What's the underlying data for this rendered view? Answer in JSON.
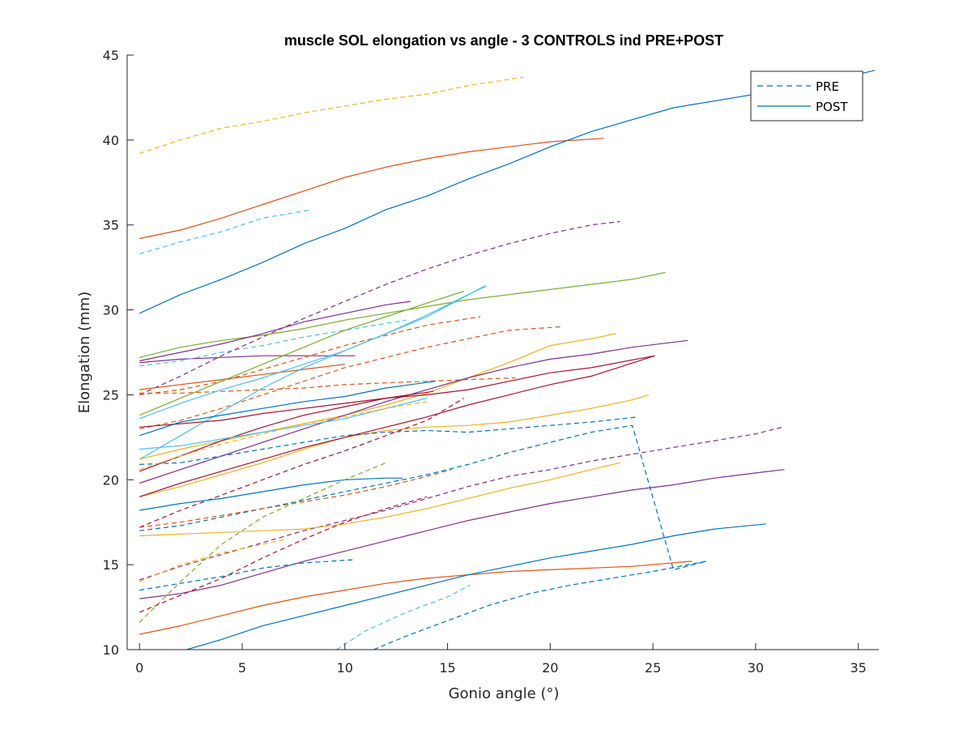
{
  "chart_data": {
    "type": "line",
    "title": "muscle SOL elongation vs angle - 3 CONTROLS ind PRE+POST",
    "xlabel": "Gonio angle (°)",
    "ylabel": "Elongation (mm)",
    "xlim": [
      -0.6,
      36
    ],
    "ylim": [
      10,
      45
    ],
    "xticks": [
      0,
      5,
      10,
      15,
      20,
      25,
      30,
      35
    ],
    "yticks": [
      10,
      15,
      20,
      25,
      30,
      35,
      40,
      45
    ],
    "legend": {
      "position": "top-right",
      "entries": [
        {
          "label": "PRE",
          "style": "dashed",
          "color": "#0072BD"
        },
        {
          "label": "POST",
          "style": "solid",
          "color": "#0072BD"
        }
      ]
    },
    "series": [
      {
        "color": "#EDB120",
        "style": "dashed",
        "x": [
          0,
          2,
          4,
          6,
          8,
          10,
          12,
          14,
          16,
          18.7
        ],
        "y": [
          39.2,
          40.0,
          40.7,
          41.1,
          41.6,
          42.0,
          42.4,
          42.7,
          43.2,
          43.7
        ]
      },
      {
        "color": "#D95319",
        "style": "solid",
        "x": [
          0,
          2,
          4,
          6,
          8,
          10,
          12,
          14,
          16,
          18,
          20,
          22.6
        ],
        "y": [
          34.2,
          34.7,
          35.4,
          36.2,
          37.0,
          37.8,
          38.4,
          38.9,
          39.3,
          39.6,
          39.9,
          40.1
        ]
      },
      {
        "color": "#0072BD",
        "style": "solid",
        "x": [
          0,
          2,
          4,
          6,
          8,
          10,
          12,
          14,
          16,
          18,
          20,
          22,
          24,
          26,
          28,
          30,
          32,
          34,
          35.8
        ],
        "y": [
          29.8,
          30.9,
          31.8,
          32.8,
          33.9,
          34.8,
          35.9,
          36.7,
          37.7,
          38.6,
          39.6,
          40.5,
          41.2,
          41.9,
          42.3,
          42.7,
          43.2,
          43.6,
          44.1
        ]
      },
      {
        "color": "#4DBEEE",
        "style": "dashed",
        "x": [
          0,
          2,
          4,
          6,
          8.4
        ],
        "y": [
          33.3,
          34.0,
          34.6,
          35.4,
          35.9
        ]
      },
      {
        "color": "#7E2F8E",
        "style": "dashed",
        "x": [
          0,
          2,
          4,
          6,
          8,
          10,
          12,
          14,
          16,
          18,
          20,
          22,
          23.4
        ],
        "y": [
          25.0,
          26.1,
          27.3,
          28.4,
          29.5,
          30.5,
          31.5,
          32.4,
          33.2,
          33.9,
          34.5,
          35.0,
          35.2
        ]
      },
      {
        "color": "#77AC30",
        "style": "solid",
        "x": [
          0,
          2,
          4,
          6,
          8,
          10,
          12,
          14,
          16,
          18,
          20,
          22,
          24,
          25.6
        ],
        "y": [
          27.2,
          27.8,
          28.2,
          28.5,
          28.9,
          29.4,
          29.8,
          30.2,
          30.6,
          30.9,
          31.2,
          31.5,
          31.8,
          32.2
        ]
      },
      {
        "color": "#7E2F8E",
        "style": "solid",
        "x": [
          0,
          2,
          4,
          6,
          8,
          10,
          12,
          13.2
        ],
        "y": [
          27.0,
          27.5,
          28.0,
          28.6,
          29.3,
          29.8,
          30.3,
          30.5
        ]
      },
      {
        "color": "#7E2F8E",
        "style": "solid",
        "x": [
          0,
          2,
          4,
          6,
          8,
          10.5
        ],
        "y": [
          26.9,
          27.1,
          27.2,
          27.3,
          27.3,
          27.3
        ]
      },
      {
        "color": "#4DBEEE",
        "style": "dashed",
        "x": [
          0,
          2,
          4,
          6,
          8,
          10,
          12,
          13
        ],
        "y": [
          26.7,
          27.0,
          27.5,
          27.9,
          28.4,
          28.8,
          29.2,
          29.4
        ]
      },
      {
        "color": "#D95319",
        "style": "dashed",
        "x": [
          0,
          2,
          4,
          6,
          8,
          10,
          12,
          14,
          16.6
        ],
        "y": [
          25.0,
          25.3,
          25.8,
          26.5,
          27.2,
          27.9,
          28.5,
          29.1,
          29.6
        ]
      },
      {
        "color": "#D95319",
        "style": "dashed",
        "x": [
          0,
          2,
          4,
          6,
          8,
          10,
          12,
          14,
          16,
          18,
          20.5
        ],
        "y": [
          23.0,
          23.5,
          24.2,
          25.0,
          25.8,
          26.6,
          27.2,
          27.8,
          28.3,
          28.8,
          29.0
        ]
      },
      {
        "color": "#D95319",
        "style": "solid",
        "x": [
          0,
          2,
          4,
          6,
          8,
          10
        ],
        "y": [
          25.3,
          25.6,
          25.9,
          26.2,
          26.5,
          26.8
        ]
      },
      {
        "color": "#D95319",
        "style": "dashed",
        "x": [
          0,
          2,
          4,
          6,
          8,
          10,
          12,
          14,
          16,
          18.3
        ],
        "y": [
          25.1,
          25.1,
          25.2,
          25.3,
          25.4,
          25.6,
          25.7,
          25.8,
          25.9,
          26.0
        ]
      },
      {
        "color": "#77AC30",
        "style": "solid",
        "x": [
          0,
          2,
          4,
          6,
          8,
          10,
          12,
          14,
          15.8
        ],
        "y": [
          23.8,
          24.8,
          25.8,
          26.8,
          27.8,
          28.8,
          29.6,
          30.4,
          31.1
        ]
      },
      {
        "color": "#4DBEEE",
        "style": "solid",
        "x": [
          0,
          2,
          4,
          6,
          8,
          10,
          12,
          14,
          16,
          16.9
        ],
        "y": [
          23.6,
          24.5,
          25.3,
          26.0,
          26.8,
          27.6,
          28.6,
          29.7,
          30.9,
          31.4
        ]
      },
      {
        "color": "#4DBEEE",
        "style": "solid",
        "x": [
          0,
          2,
          4,
          6,
          8,
          10,
          12,
          14,
          16.8
        ],
        "y": [
          21.2,
          22.6,
          24.0,
          25.4,
          26.6,
          27.6,
          28.6,
          29.6,
          31.4
        ]
      },
      {
        "color": "#EDB120",
        "style": "solid",
        "x": [
          0,
          2,
          4,
          6,
          8,
          10,
          12,
          14,
          16,
          18,
          20,
          22,
          23.2
        ],
        "y": [
          21.2,
          21.8,
          22.3,
          22.8,
          23.3,
          23.8,
          24.4,
          25.1,
          26.0,
          26.9,
          27.9,
          28.3,
          28.6
        ]
      },
      {
        "color": "#7E2F8E",
        "style": "solid",
        "x": [
          0,
          2,
          4,
          6,
          8,
          10,
          12,
          14,
          16,
          18,
          20,
          22,
          24,
          26.7
        ],
        "y": [
          19.8,
          20.6,
          21.4,
          22.2,
          23.0,
          23.8,
          24.6,
          25.3,
          26.0,
          26.6,
          27.1,
          27.4,
          27.8,
          28.2
        ]
      },
      {
        "color": "#A2142F",
        "style": "solid",
        "x": [
          0,
          2,
          4,
          6,
          8,
          10,
          12,
          14,
          16,
          18,
          20,
          22,
          25.1
        ],
        "y": [
          23.1,
          23.3,
          23.5,
          23.9,
          24.2,
          24.5,
          24.8,
          25.0,
          25.3,
          25.8,
          26.3,
          26.6,
          27.3
        ]
      },
      {
        "color": "#A2142F",
        "style": "solid",
        "x": [
          0,
          2,
          4,
          6,
          8,
          10,
          12,
          14.3
        ],
        "y": [
          20.5,
          21.4,
          22.3,
          23.1,
          23.8,
          24.3,
          24.8,
          25.2
        ]
      },
      {
        "color": "#0072BD",
        "style": "solid",
        "x": [
          0,
          2,
          4,
          6,
          8,
          10,
          12,
          14.4
        ],
        "y": [
          22.6,
          23.4,
          23.8,
          24.2,
          24.6,
          24.9,
          25.4,
          25.8
        ]
      },
      {
        "color": "#EDB120",
        "style": "solid",
        "x": [
          0,
          2,
          4,
          6,
          8,
          10,
          12,
          14,
          16,
          18,
          20,
          22,
          24,
          24.8
        ],
        "y": [
          19.0,
          19.6,
          20.3,
          21.0,
          21.8,
          22.5,
          22.9,
          23.1,
          23.2,
          23.4,
          23.8,
          24.2,
          24.7,
          25.0
        ]
      },
      {
        "color": "#4DBEEE",
        "style": "solid",
        "x": [
          0,
          2,
          4,
          6,
          8,
          10,
          12,
          14
        ],
        "y": [
          21.8,
          22.0,
          22.4,
          22.8,
          23.2,
          23.6,
          24.2,
          24.8
        ]
      },
      {
        "color": "#0072BD",
        "style": "dashed",
        "x": [
          0,
          2,
          4,
          6,
          8,
          10,
          12,
          14,
          16,
          18,
          20,
          22,
          24.3
        ],
        "y": [
          20.9,
          21.0,
          21.4,
          21.8,
          22.2,
          22.6,
          22.8,
          22.9,
          22.8,
          23.0,
          23.2,
          23.4,
          23.7
        ]
      },
      {
        "color": "#EDB120",
        "style": "dashed",
        "x": [
          0,
          2,
          4,
          6,
          8,
          10,
          12,
          14
        ],
        "y": [
          20.6,
          21.4,
          22.1,
          22.7,
          23.3,
          23.7,
          24.2,
          24.6
        ]
      },
      {
        "color": "#A2142F",
        "style": "solid",
        "x": [
          0,
          2,
          4,
          6,
          8,
          10,
          12,
          14,
          16,
          18,
          20,
          22,
          25.1
        ],
        "y": [
          19.0,
          19.8,
          20.5,
          21.2,
          21.9,
          22.5,
          23.1,
          23.7,
          24.4,
          25.0,
          25.6,
          26.1,
          27.3
        ]
      },
      {
        "color": "#A2142F",
        "style": "dashed",
        "x": [
          0,
          2,
          4,
          6,
          8,
          10,
          12,
          14,
          15.8
        ],
        "y": [
          17.2,
          18.2,
          19.1,
          20.0,
          20.9,
          21.7,
          22.6,
          23.5,
          24.8
        ]
      },
      {
        "color": "#7E2F8E",
        "style": "dashed",
        "x": [
          0,
          2,
          4,
          6,
          8,
          10,
          12,
          14,
          16,
          18,
          20,
          22,
          24,
          26,
          28,
          30,
          31.3
        ],
        "y": [
          14.1,
          14.9,
          15.6,
          16.3,
          17.0,
          17.6,
          18.2,
          18.9,
          19.6,
          20.2,
          20.6,
          21.1,
          21.5,
          21.9,
          22.3,
          22.7,
          23.1
        ]
      },
      {
        "color": "#7E2F8E",
        "style": "solid",
        "x": [
          0,
          2,
          4,
          6,
          8,
          10,
          12,
          14,
          16,
          18,
          20,
          22,
          24,
          26,
          28,
          30,
          31.4
        ],
        "y": [
          13.0,
          13.3,
          13.8,
          14.5,
          15.2,
          15.8,
          16.4,
          17.0,
          17.6,
          18.1,
          18.6,
          19.0,
          19.4,
          19.7,
          20.1,
          20.4,
          20.6
        ]
      },
      {
        "color": "#EDB120",
        "style": "solid",
        "x": [
          0,
          2,
          4,
          6,
          8,
          10,
          12,
          14,
          16,
          18,
          20,
          22,
          23.4
        ],
        "y": [
          16.7,
          16.8,
          16.9,
          17.0,
          17.1,
          17.4,
          17.8,
          18.3,
          18.9,
          19.5,
          20.0,
          20.6,
          21.0
        ]
      },
      {
        "color": "#0072BD",
        "style": "solid",
        "x": [
          0,
          2,
          4,
          6,
          8,
          10,
          12,
          12.8
        ],
        "y": [
          18.2,
          18.6,
          18.9,
          19.3,
          19.7,
          20.0,
          20.1,
          20.1
        ]
      },
      {
        "color": "#0072BD",
        "style": "dashed",
        "x": [
          0,
          2,
          4,
          6,
          8,
          10,
          12,
          14,
          16,
          18,
          20,
          22,
          24,
          26,
          27.6
        ],
        "y": [
          17.0,
          17.3,
          17.8,
          18.3,
          18.8,
          19.3,
          19.8,
          20.3,
          20.9,
          21.6,
          22.2,
          22.8,
          23.2,
          14.7,
          15.2
        ]
      },
      {
        "color": "#D95319",
        "style": "dashed",
        "x": [
          0,
          2,
          4,
          6,
          8,
          10,
          12,
          14,
          15.2
        ],
        "y": [
          17.2,
          17.5,
          17.9,
          18.3,
          18.7,
          19.1,
          19.6,
          20.2,
          20.6
        ]
      },
      {
        "color": "#77AC30",
        "style": "dashed",
        "x": [
          0,
          2,
          4,
          6,
          8,
          10,
          12
        ],
        "y": [
          11.6,
          14.0,
          16.2,
          17.8,
          18.9,
          20.0,
          21.0
        ]
      },
      {
        "color": "#A2142F",
        "style": "dashed",
        "x": [
          0,
          2,
          4,
          6,
          8,
          10,
          12,
          14
        ],
        "y": [
          12.2,
          13.2,
          14.2,
          15.4,
          16.5,
          17.5,
          18.3,
          19.0
        ]
      },
      {
        "color": "#0072BD",
        "style": "dashed",
        "x": [
          0,
          2,
          4,
          6,
          8,
          10.5
        ],
        "y": [
          13.5,
          13.9,
          14.3,
          14.8,
          15.1,
          15.3
        ]
      },
      {
        "color": "#EDB120",
        "style": "dashed",
        "x": [
          0,
          2,
          4,
          6,
          7.1
        ],
        "y": [
          14.0,
          15.0,
          15.7,
          16.2,
          16.5
        ]
      },
      {
        "color": "#D95319",
        "style": "solid",
        "x": [
          0,
          2,
          4,
          6,
          8,
          10,
          12,
          14,
          16,
          18,
          20,
          22,
          24,
          26.9
        ],
        "y": [
          10.9,
          11.4,
          12.0,
          12.6,
          13.1,
          13.5,
          13.9,
          14.2,
          14.4,
          14.6,
          14.7,
          14.8,
          14.9,
          15.2
        ]
      },
      {
        "color": "#0072BD",
        "style": "solid",
        "x": [
          2.3,
          4,
          6,
          8,
          10,
          12,
          14,
          16,
          18,
          20,
          22,
          24,
          26,
          28,
          30.5
        ],
        "y": [
          10.0,
          10.6,
          11.4,
          12.0,
          12.6,
          13.2,
          13.8,
          14.4,
          14.9,
          15.4,
          15.8,
          16.2,
          16.7,
          17.1,
          17.4
        ]
      },
      {
        "color": "#4DBEEE",
        "style": "dashed",
        "x": [
          9.6,
          11,
          13,
          15,
          16.1
        ],
        "y": [
          10.0,
          11.1,
          12.2,
          13.1,
          13.8
        ]
      },
      {
        "color": "#0072BD",
        "style": "dashed",
        "x": [
          11.4,
          13,
          15,
          17,
          19,
          21,
          23,
          25,
          27.6
        ],
        "y": [
          10.0,
          10.8,
          11.7,
          12.6,
          13.3,
          13.8,
          14.2,
          14.6,
          15.2
        ]
      }
    ]
  }
}
